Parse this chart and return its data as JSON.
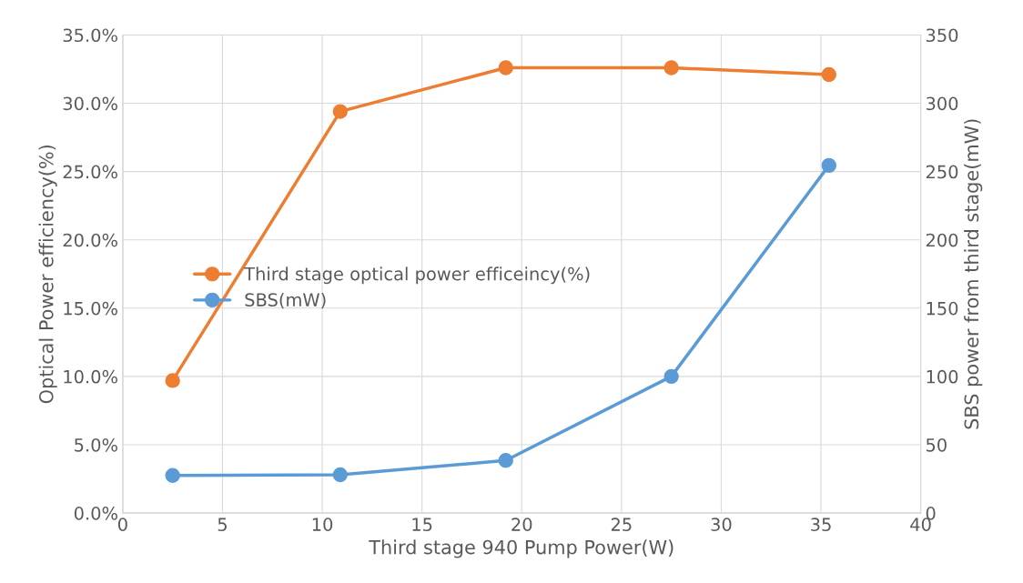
{
  "chart_data": {
    "type": "line",
    "xlabel": "Third stage 940 Pump Power(W)",
    "ylabel": "Optical Power efficiency(%)",
    "y2label": "SBS power from third stage(mW)",
    "x": [
      2.5,
      10.9,
      19.2,
      27.5,
      35.4
    ],
    "series": [
      {
        "name": "Third stage optical power efficeincy(%)",
        "color": "#ed7d31",
        "values": [
          9.7,
          29.4,
          32.6,
          32.6,
          32.1
        ]
      },
      {
        "name": "SBS(mW)",
        "color": "#5b9bd5",
        "axis": "y2",
        "values": [
          27.5,
          28,
          38.5,
          100,
          254.5
        ]
      }
    ],
    "xlim": [
      0,
      40
    ],
    "xticks": [
      0,
      5,
      10,
      15,
      20,
      25,
      30,
      35,
      40
    ],
    "ylim": [
      0,
      35
    ],
    "yticks": [
      {
        "value": 0,
        "label": "0.0%"
      },
      {
        "value": 5,
        "label": "5.0%"
      },
      {
        "value": 10,
        "label": "10.0%"
      },
      {
        "value": 15,
        "label": "15.0%"
      },
      {
        "value": 20,
        "label": "20.0%"
      },
      {
        "value": 25,
        "label": "25.0%"
      },
      {
        "value": 30,
        "label": "30.0%"
      },
      {
        "value": 35,
        "label": "35.0%"
      }
    ],
    "y2lim": [
      0,
      350
    ],
    "y2ticks": [
      0,
      50,
      100,
      150,
      200,
      250,
      300,
      350
    ],
    "grid": true,
    "legend": "left",
    "marker": "circle",
    "line_style": "solid"
  }
}
